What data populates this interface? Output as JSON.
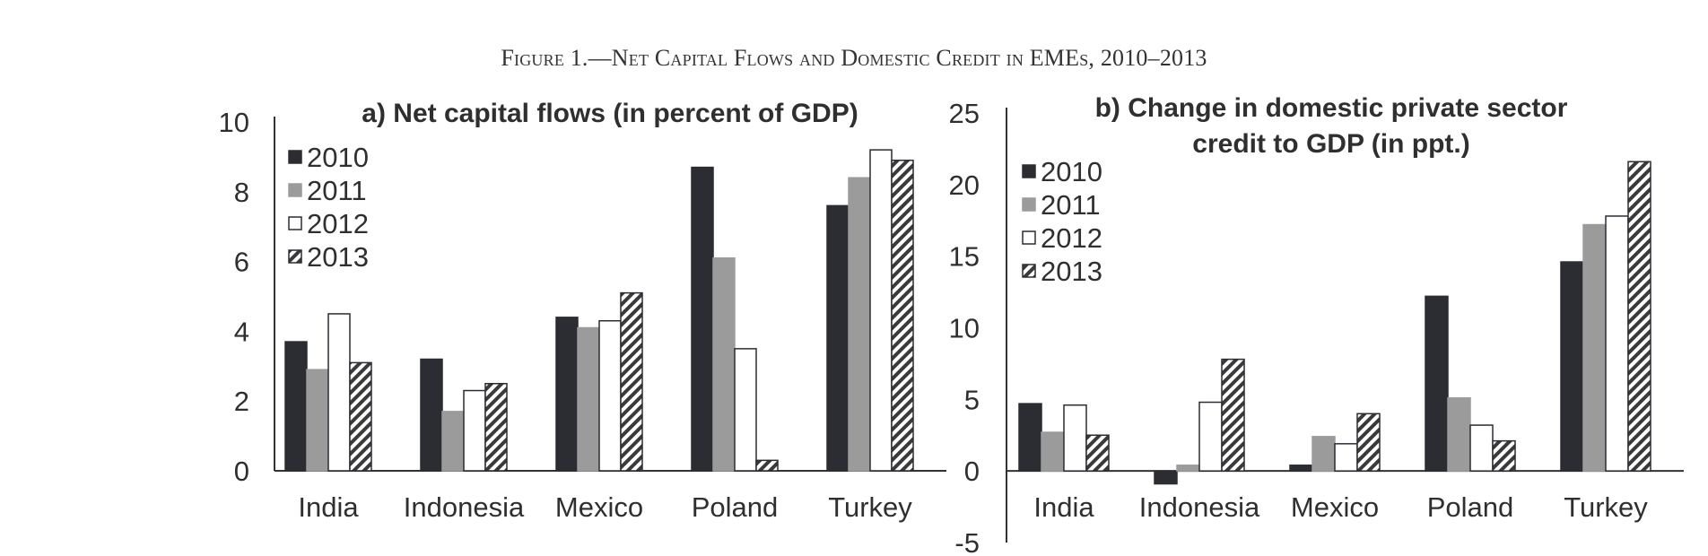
{
  "figure_title": "Figure 1.—Net Capital Flows and Domestic Credit in EMEs, 2010–2013",
  "chart_data": [
    {
      "type": "bar",
      "title": "a) Net capital flows (in percent of GDP)",
      "categories": [
        "India",
        "Indonesia",
        "Mexico",
        "Poland",
        "Turkey"
      ],
      "series": [
        {
          "name": "2010",
          "values": [
            3.7,
            3.2,
            4.4,
            8.7,
            7.6
          ]
        },
        {
          "name": "2011",
          "values": [
            2.9,
            1.7,
            4.1,
            6.1,
            8.4
          ]
        },
        {
          "name": "2012",
          "values": [
            4.5,
            2.3,
            4.3,
            3.5,
            9.2
          ]
        },
        {
          "name": "2013",
          "values": [
            3.1,
            2.5,
            5.1,
            0.3,
            8.9
          ]
        }
      ],
      "yticks": [
        "0",
        "2",
        "4",
        "6",
        "8",
        "10"
      ],
      "ylim": [
        0,
        10
      ],
      "legend_position": "top-left",
      "grid": false
    },
    {
      "type": "bar",
      "title": "b) Change in domestic private sector credit to GDP (in ppt.)",
      "title_lines": [
        "b) Change in domestic private sector",
        "credit to GDP (in ppt.)"
      ],
      "categories": [
        "India",
        "Indonesia",
        "Mexico",
        "Poland",
        "Turkey"
      ],
      "series": [
        {
          "name": "2010",
          "values": [
            4.7,
            -0.9,
            0.4,
            12.2,
            14.6
          ]
        },
        {
          "name": "2011",
          "values": [
            2.7,
            0.4,
            2.4,
            5.1,
            17.2
          ]
        },
        {
          "name": "2012",
          "values": [
            4.6,
            4.8,
            1.9,
            3.2,
            17.8
          ]
        },
        {
          "name": "2013",
          "values": [
            2.5,
            7.8,
            4.0,
            2.1,
            21.6
          ]
        }
      ],
      "yticks": [
        "-5",
        "0",
        "5",
        "10",
        "15",
        "20",
        "25"
      ],
      "ylim": [
        -5,
        25
      ],
      "legend_position": "top-left",
      "grid": false
    }
  ],
  "colors": {
    "s2010": "#2b2d33",
    "s2011": "#9b9b9b",
    "s2012": "#ffffff",
    "s2013_stripe_dark": "#3a3a3a",
    "s2013_stripe_light": "#ffffff",
    "axis": "#333333"
  }
}
